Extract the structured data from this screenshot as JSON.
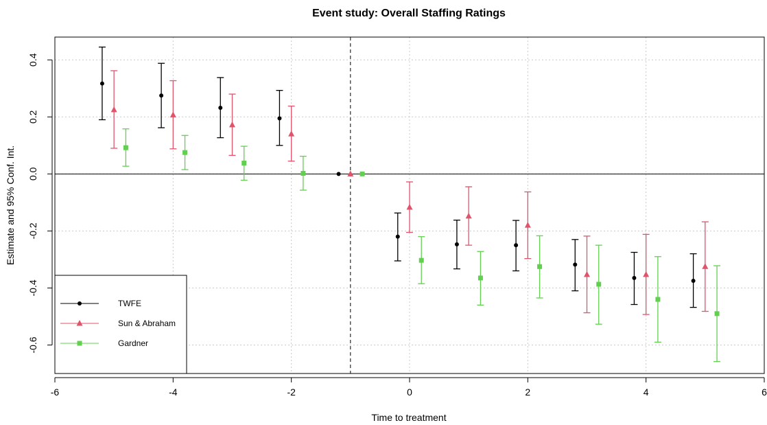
{
  "chart_data": {
    "type": "scatter",
    "title": "Event study: Overall Staffing Ratings",
    "xlabel": "Time to treatment",
    "ylabel": "Estimate and 95% Conf. Int.",
    "xlim": [
      -6,
      6
    ],
    "ylim": [
      -0.7,
      0.48
    ],
    "x_ticks": [
      -6,
      -4,
      -2,
      0,
      2,
      4,
      6
    ],
    "y_ticks": [
      -0.6,
      -0.4,
      -0.2,
      0.0,
      0.2,
      0.4
    ],
    "x_tick_labels": [
      "-6",
      "-4",
      "-2",
      "0",
      "2",
      "4",
      "6"
    ],
    "y_tick_labels": [
      "-0.6",
      "-0.4",
      "-0.2",
      "0.0",
      "0.2",
      "0.4"
    ],
    "grid": true,
    "reference_lines": {
      "horizontal_y": 0,
      "vertical_x": -1
    },
    "legend_position": "bottom-left",
    "series": [
      {
        "name": "TWFE",
        "color": "#000000",
        "marker": "circle",
        "points": [
          {
            "event_time": -5,
            "estimate": 0.317,
            "ci_low": 0.19,
            "ci_high": 0.445
          },
          {
            "event_time": -4,
            "estimate": 0.275,
            "ci_low": 0.162,
            "ci_high": 0.388
          },
          {
            "event_time": -3,
            "estimate": 0.232,
            "ci_low": 0.127,
            "ci_high": 0.338
          },
          {
            "event_time": -2,
            "estimate": 0.195,
            "ci_low": 0.1,
            "ci_high": 0.293
          },
          {
            "event_time": -1,
            "estimate": 0.0,
            "ci_low": 0.0,
            "ci_high": 0.0
          },
          {
            "event_time": 0,
            "estimate": -0.22,
            "ci_low": -0.305,
            "ci_high": -0.137
          },
          {
            "event_time": 1,
            "estimate": -0.247,
            "ci_low": -0.333,
            "ci_high": -0.162
          },
          {
            "event_time": 2,
            "estimate": -0.25,
            "ci_low": -0.34,
            "ci_high": -0.163
          },
          {
            "event_time": 3,
            "estimate": -0.318,
            "ci_low": -0.41,
            "ci_high": -0.23
          },
          {
            "event_time": 4,
            "estimate": -0.365,
            "ci_low": -0.458,
            "ci_high": -0.275
          },
          {
            "event_time": 5,
            "estimate": -0.375,
            "ci_low": -0.468,
            "ci_high": -0.28
          }
        ]
      },
      {
        "name": "Sun & Abraham",
        "color": "#DF536B",
        "marker": "triangle",
        "points": [
          {
            "event_time": -5,
            "estimate": 0.225,
            "ci_low": 0.09,
            "ci_high": 0.362
          },
          {
            "event_time": -4,
            "estimate": 0.207,
            "ci_low": 0.088,
            "ci_high": 0.327
          },
          {
            "event_time": -3,
            "estimate": 0.172,
            "ci_low": 0.065,
            "ci_high": 0.28
          },
          {
            "event_time": -2,
            "estimate": 0.14,
            "ci_low": 0.045,
            "ci_high": 0.238
          },
          {
            "event_time": -1,
            "estimate": 0.0,
            "ci_low": 0.0,
            "ci_high": 0.0
          },
          {
            "event_time": 0,
            "estimate": -0.117,
            "ci_low": -0.205,
            "ci_high": -0.028
          },
          {
            "event_time": 1,
            "estimate": -0.148,
            "ci_low": -0.25,
            "ci_high": -0.045
          },
          {
            "event_time": 2,
            "estimate": -0.18,
            "ci_low": -0.297,
            "ci_high": -0.063
          },
          {
            "event_time": 3,
            "estimate": -0.353,
            "ci_low": -0.487,
            "ci_high": -0.218
          },
          {
            "event_time": 4,
            "estimate": -0.353,
            "ci_low": -0.493,
            "ci_high": -0.212
          },
          {
            "event_time": 5,
            "estimate": -0.325,
            "ci_low": -0.482,
            "ci_high": -0.168
          }
        ]
      },
      {
        "name": "Gardner",
        "color": "#61D04F",
        "marker": "square",
        "points": [
          {
            "event_time": -5,
            "estimate": 0.092,
            "ci_low": 0.027,
            "ci_high": 0.158
          },
          {
            "event_time": -4,
            "estimate": 0.075,
            "ci_low": 0.015,
            "ci_high": 0.135
          },
          {
            "event_time": -3,
            "estimate": 0.038,
            "ci_low": -0.022,
            "ci_high": 0.097
          },
          {
            "event_time": -2,
            "estimate": 0.002,
            "ci_low": -0.057,
            "ci_high": 0.062
          },
          {
            "event_time": -1,
            "estimate": 0.0,
            "ci_low": 0.0,
            "ci_high": 0.0
          },
          {
            "event_time": 0,
            "estimate": -0.303,
            "ci_low": -0.385,
            "ci_high": -0.22
          },
          {
            "event_time": 1,
            "estimate": -0.365,
            "ci_low": -0.46,
            "ci_high": -0.272
          },
          {
            "event_time": 2,
            "estimate": -0.325,
            "ci_low": -0.435,
            "ci_high": -0.217
          },
          {
            "event_time": 3,
            "estimate": -0.387,
            "ci_low": -0.527,
            "ci_high": -0.25
          },
          {
            "event_time": 4,
            "estimate": -0.44,
            "ci_low": -0.59,
            "ci_high": -0.29
          },
          {
            "event_time": 5,
            "estimate": -0.49,
            "ci_low": -0.658,
            "ci_high": -0.322
          }
        ]
      }
    ]
  }
}
